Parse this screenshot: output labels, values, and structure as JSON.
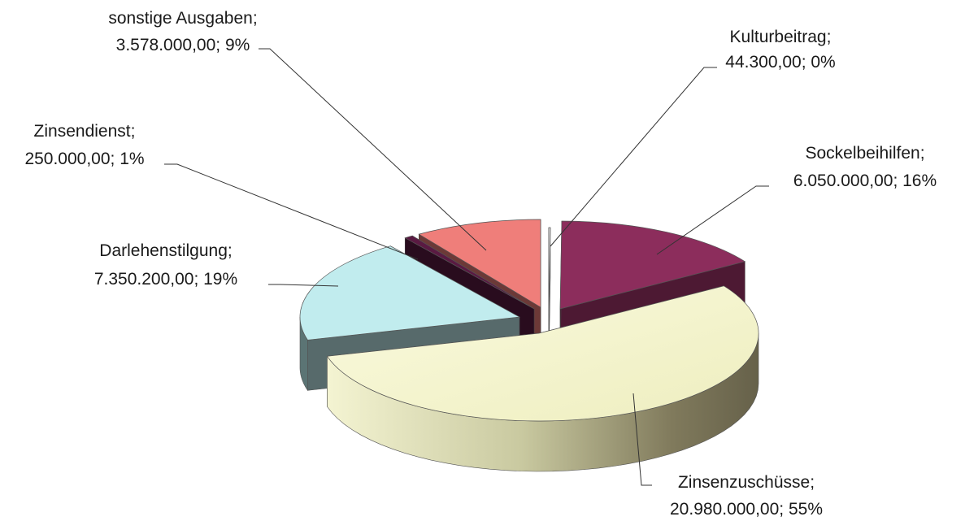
{
  "chart_data": {
    "type": "pie",
    "title": "",
    "slices": [
      {
        "name": "Kulturbeitrag",
        "value_text": "44.300,00",
        "value": 44300,
        "percent_text": "0%",
        "color": "#f4f4f4"
      },
      {
        "name": "Sockelbeihilfen",
        "value_text": "6.050.000,00",
        "value": 6050000,
        "percent_text": "16%",
        "color": "#8c2d5c"
      },
      {
        "name": "Zinsenzuschüsse",
        "value_text": "20.980.000,00",
        "value": 20980000,
        "percent_text": "55%",
        "color": "#f7f7cf"
      },
      {
        "name": "Darlehenstilgung",
        "value_text": "7.350.200,00",
        "value": 7350200,
        "percent_text": "19%",
        "color": "#c1ecee"
      },
      {
        "name": "Zinsendienst",
        "value_text": "250.000,00",
        "value": 250000,
        "percent_text": "1%",
        "color": "#5a1a42"
      },
      {
        "name": "sonstige Ausgaben",
        "value_text": "3.578.000,00",
        "value": 3578000,
        "percent_text": "9%",
        "color": "#ef7e7a"
      }
    ]
  }
}
